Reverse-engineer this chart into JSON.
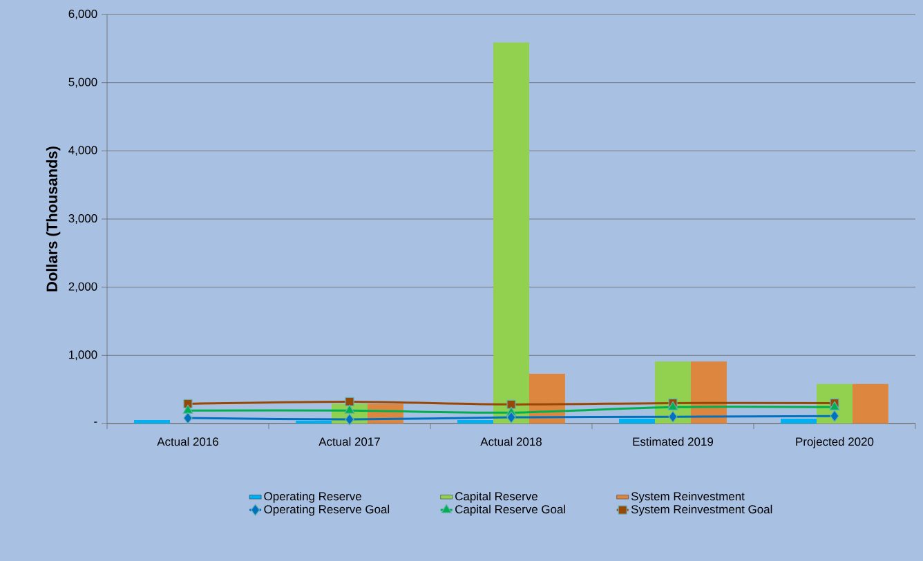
{
  "chart_data": {
    "type": "bar",
    "ylabel": "Dollars (Thousands)",
    "categories": [
      "Actual 2016",
      "Actual 2017",
      "Actual 2018",
      "Estimated 2019",
      "Projected 2020"
    ],
    "series": [
      {
        "name": "Operating Reserve",
        "color": "#00b0f0",
        "values": [
          50,
          40,
          50,
          70,
          70
        ]
      },
      {
        "name": "Capital Reserve",
        "color": "#92d050",
        "values": [
          0,
          290,
          5590,
          910,
          580
        ]
      },
      {
        "name": "System Reinvestment",
        "color": "#dd8640",
        "values": [
          0,
          290,
          730,
          910,
          580
        ]
      },
      {
        "name": "Operating Reserve Goal",
        "type": "line",
        "color": "#0070c0",
        "marker": "diamond",
        "values": [
          80,
          60,
          90,
          100,
          110
        ]
      },
      {
        "name": "Capital Reserve Goal",
        "type": "line",
        "color": "#00b050",
        "marker": "triangle",
        "values": [
          190,
          190,
          160,
          240,
          240
        ]
      },
      {
        "name": "System Reinvestment Goal",
        "type": "line",
        "color": "#974706",
        "marker": "square",
        "values": [
          290,
          320,
          280,
          300,
          300
        ]
      }
    ],
    "ylim": [
      0,
      6000
    ],
    "yticks": [
      {
        "value": 0,
        "label": "-"
      },
      {
        "value": 1000,
        "label": "1,000"
      },
      {
        "value": 2000,
        "label": "2,000"
      },
      {
        "value": 3000,
        "label": "3,000"
      },
      {
        "value": 4000,
        "label": "4,000"
      },
      {
        "value": 5000,
        "label": "5,000"
      },
      {
        "value": 6000,
        "label": "6,000"
      }
    ],
    "grid": "y",
    "legend": "bottom"
  }
}
